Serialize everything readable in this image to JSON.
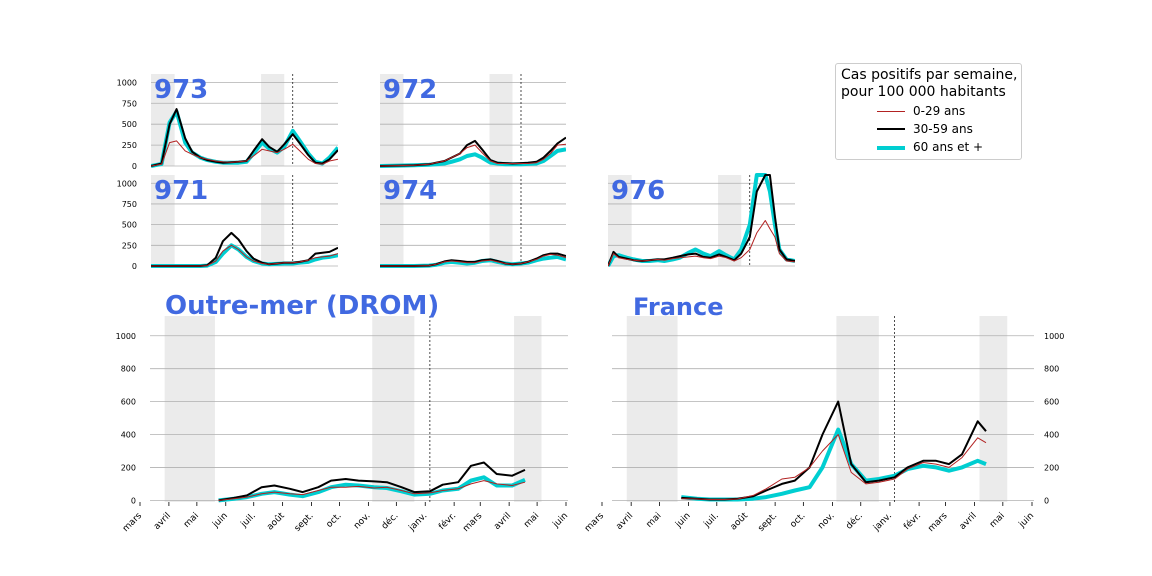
{
  "legend": {
    "title_line1": "Cas positifs par semaine,",
    "title_line2": "pour 100 000 habitants",
    "items": [
      {
        "label": "0-29 ans",
        "color": "#b22222"
      },
      {
        "label": "30-59 ans",
        "color": "#000000"
      },
      {
        "label": "60 ans et +",
        "color": "#00ced1"
      }
    ]
  },
  "chart_data": [
    {
      "type": "line",
      "title": "973",
      "x_start": "2020-03-25",
      "x_end": "2021-04-01",
      "x": [
        "2020-03-25",
        "2020-04-15",
        "2020-05-01",
        "2020-05-15",
        "2020-06-01",
        "2020-06-15",
        "2020-07-01",
        "2020-07-15",
        "2020-08-01",
        "2020-08-15",
        "2020-09-01",
        "2020-09-15",
        "2020-10-01",
        "2020-10-15",
        "2020-11-01",
        "2020-11-15",
        "2020-12-01",
        "2020-12-15",
        "2021-01-01",
        "2021-01-15",
        "2021-02-01",
        "2021-02-15",
        "2021-03-01",
        "2021-03-15",
        "2021-04-01"
      ],
      "ylim": [
        0,
        1100
      ],
      "yticks": [
        0,
        250,
        500,
        750,
        1000
      ],
      "series": [
        {
          "values": [
            0,
            20,
            280,
            300,
            180,
            140,
            100,
            80,
            60,
            50,
            45,
            50,
            60,
            120,
            200,
            180,
            160,
            200,
            260,
            180,
            80,
            30,
            20,
            60,
            80
          ]
        },
        {
          "values": [
            0,
            30,
            500,
            680,
            330,
            170,
            100,
            70,
            50,
            40,
            45,
            50,
            60,
            180,
            320,
            230,
            170,
            260,
            380,
            270,
            130,
            40,
            30,
            80,
            190
          ]
        },
        {
          "values": [
            0,
            25,
            520,
            650,
            280,
            160,
            100,
            70,
            50,
            40,
            40,
            40,
            50,
            150,
            280,
            210,
            160,
            230,
            420,
            300,
            150,
            50,
            30,
            100,
            220
          ]
        }
      ]
    },
    {
      "type": "line",
      "title": "972",
      "x_start": "2020-03-25",
      "x_end": "2021-04-01",
      "x": [
        "2020-03-25",
        "2020-05-01",
        "2020-06-01",
        "2020-07-01",
        "2020-07-15",
        "2020-08-01",
        "2020-08-15",
        "2020-09-01",
        "2020-09-15",
        "2020-10-01",
        "2020-10-15",
        "2020-11-01",
        "2020-11-15",
        "2020-12-01",
        "2020-12-15",
        "2021-01-01",
        "2021-01-15",
        "2021-02-01",
        "2021-02-15",
        "2021-03-01",
        "2021-03-15",
        "2021-04-01"
      ],
      "ylim": [
        0,
        1100
      ],
      "yticks": [
        0,
        250,
        500,
        750,
        1000
      ],
      "series": [
        {
          "values": [
            0,
            5,
            10,
            20,
            40,
            60,
            100,
            150,
            220,
            250,
            160,
            60,
            30,
            30,
            30,
            30,
            30,
            40,
            80,
            150,
            250,
            260
          ]
        },
        {
          "values": [
            0,
            5,
            10,
            20,
            40,
            60,
            100,
            150,
            250,
            300,
            200,
            70,
            40,
            35,
            30,
            35,
            40,
            50,
            100,
            180,
            270,
            340
          ]
        },
        {
          "values": [
            0,
            5,
            10,
            15,
            20,
            30,
            50,
            80,
            120,
            140,
            100,
            40,
            30,
            20,
            20,
            20,
            25,
            30,
            60,
            120,
            180,
            200
          ]
        }
      ]
    },
    {
      "type": "line",
      "title": "971",
      "x_start": "2020-03-25",
      "x_end": "2021-04-01",
      "x": [
        "2020-03-25",
        "2020-05-01",
        "2020-06-01",
        "2020-07-01",
        "2020-07-15",
        "2020-08-01",
        "2020-08-15",
        "2020-09-01",
        "2020-09-15",
        "2020-10-01",
        "2020-10-15",
        "2020-11-01",
        "2020-11-15",
        "2020-12-01",
        "2020-12-15",
        "2021-01-01",
        "2021-01-15",
        "2021-02-01",
        "2021-02-15",
        "2021-03-01",
        "2021-03-15",
        "2021-04-01"
      ],
      "ylim": [
        0,
        1100
      ],
      "yticks": [
        0,
        250,
        500,
        750,
        1000
      ],
      "series": [
        {
          "values": [
            0,
            0,
            0,
            0,
            5,
            60,
            180,
            250,
            200,
            110,
            60,
            30,
            20,
            30,
            40,
            40,
            50,
            70,
            100,
            110,
            120,
            150
          ]
        },
        {
          "values": [
            0,
            0,
            0,
            0,
            10,
            100,
            300,
            400,
            320,
            180,
            90,
            40,
            20,
            30,
            40,
            40,
            50,
            70,
            150,
            160,
            170,
            220
          ]
        },
        {
          "values": [
            0,
            0,
            0,
            0,
            5,
            50,
            150,
            250,
            200,
            110,
            60,
            30,
            20,
            25,
            30,
            30,
            40,
            50,
            80,
            100,
            110,
            130
          ]
        }
      ]
    },
    {
      "type": "line",
      "title": "974",
      "x_start": "2020-03-25",
      "x_end": "2021-04-01",
      "x": [
        "2020-03-25",
        "2020-05-01",
        "2020-06-01",
        "2020-07-01",
        "2020-07-15",
        "2020-08-01",
        "2020-08-15",
        "2020-09-01",
        "2020-09-15",
        "2020-10-01",
        "2020-10-15",
        "2020-11-01",
        "2020-11-15",
        "2020-12-01",
        "2020-12-15",
        "2021-01-01",
        "2021-01-15",
        "2021-02-01",
        "2021-02-15",
        "2021-03-01",
        "2021-03-15",
        "2021-04-01"
      ],
      "ylim": [
        0,
        1100
      ],
      "yticks": [
        0,
        250,
        500,
        750,
        1000
      ],
      "series": [
        {
          "values": [
            0,
            0,
            0,
            5,
            20,
            50,
            60,
            50,
            40,
            40,
            60,
            70,
            50,
            30,
            20,
            30,
            50,
            80,
            120,
            140,
            130,
            100
          ]
        },
        {
          "values": [
            0,
            0,
            0,
            5,
            20,
            55,
            70,
            60,
            50,
            50,
            70,
            80,
            60,
            30,
            20,
            30,
            50,
            90,
            130,
            150,
            150,
            120
          ]
        },
        {
          "values": [
            0,
            0,
            0,
            5,
            15,
            40,
            50,
            40,
            30,
            40,
            60,
            70,
            50,
            30,
            20,
            30,
            40,
            70,
            90,
            100,
            110,
            80
          ]
        }
      ]
    },
    {
      "type": "line",
      "title": "976",
      "x_start": "2020-03-25",
      "x_end": "2021-04-01",
      "x": [
        "2020-03-25",
        "2020-04-05",
        "2020-04-15",
        "2020-05-01",
        "2020-05-15",
        "2020-06-01",
        "2020-06-15",
        "2020-07-01",
        "2020-07-15",
        "2020-08-01",
        "2020-08-15",
        "2020-09-01",
        "2020-09-15",
        "2020-10-01",
        "2020-10-15",
        "2020-11-01",
        "2020-11-15",
        "2020-12-01",
        "2020-12-15",
        "2021-01-01",
        "2021-01-15",
        "2021-02-01",
        "2021-02-10",
        "2021-02-20",
        "2021-03-01",
        "2021-03-15",
        "2021-04-01"
      ],
      "ylim": [
        0,
        1100
      ],
      "yticks": [
        0,
        250,
        500,
        750,
        1000
      ],
      "series": [
        {
          "values": [
            0,
            150,
            100,
            80,
            70,
            60,
            70,
            80,
            70,
            90,
            100,
            110,
            120,
            100,
            90,
            120,
            100,
            60,
            100,
            200,
            400,
            550,
            450,
            350,
            150,
            60,
            50
          ]
        },
        {
          "values": [
            0,
            170,
            110,
            90,
            70,
            60,
            70,
            80,
            80,
            100,
            120,
            140,
            150,
            110,
            100,
            140,
            110,
            70,
            150,
            350,
            900,
            1500,
            1100,
            600,
            200,
            80,
            60
          ]
        },
        {
          "values": [
            0,
            120,
            130,
            100,
            80,
            60,
            60,
            70,
            60,
            80,
            100,
            160,
            200,
            150,
            120,
            180,
            130,
            80,
            200,
            500,
            1200,
            1400,
            900,
            500,
            200,
            80,
            60
          ]
        }
      ]
    },
    {
      "type": "line",
      "title": "Outre-mer (DROM)",
      "x_start": "2020-03-01",
      "x_end": "2021-06-01",
      "x": [
        "2020-05-15",
        "2020-06-01",
        "2020-06-15",
        "2020-07-01",
        "2020-07-15",
        "2020-08-01",
        "2020-08-15",
        "2020-09-01",
        "2020-09-15",
        "2020-10-01",
        "2020-10-15",
        "2020-11-01",
        "2020-11-15",
        "2020-12-01",
        "2020-12-15",
        "2021-01-01",
        "2021-01-15",
        "2021-02-01",
        "2021-02-15",
        "2021-03-01",
        "2021-03-15",
        "2021-04-01",
        "2021-04-15"
      ],
      "ylim": [
        -10,
        1120
      ],
      "yticks": [
        0,
        200,
        400,
        600,
        800,
        1000
      ],
      "series": [
        {
          "values": [
            0,
            10,
            20,
            40,
            50,
            40,
            35,
            60,
            80,
            80,
            85,
            75,
            80,
            60,
            40,
            45,
            60,
            70,
            100,
            120,
            100,
            90,
            110
          ]
        },
        {
          "values": [
            0,
            15,
            30,
            80,
            90,
            70,
            50,
            80,
            120,
            130,
            120,
            115,
            110,
            80,
            50,
            55,
            95,
            110,
            210,
            230,
            160,
            150,
            185
          ]
        },
        {
          "values": [
            0,
            10,
            20,
            40,
            50,
            35,
            25,
            50,
            80,
            95,
            90,
            80,
            75,
            55,
            35,
            40,
            60,
            70,
            120,
            140,
            90,
            90,
            125
          ]
        }
      ]
    },
    {
      "type": "line",
      "title": "France",
      "x_start": "2020-03-01",
      "x_end": "2021-06-01",
      "x": [
        "2020-05-15",
        "2020-06-01",
        "2020-06-15",
        "2020-07-01",
        "2020-07-15",
        "2020-08-01",
        "2020-08-15",
        "2020-09-01",
        "2020-09-15",
        "2020-10-01",
        "2020-10-15",
        "2020-11-01",
        "2020-11-15",
        "2020-12-01",
        "2020-12-15",
        "2021-01-01",
        "2021-01-15",
        "2021-02-01",
        "2021-02-15",
        "2021-03-01",
        "2021-03-15",
        "2021-04-01",
        "2021-04-10"
      ],
      "ylim": [
        -10,
        1120
      ],
      "yticks": [
        0,
        200,
        400,
        600,
        800,
        1000
      ],
      "series": [
        {
          "values": [
            10,
            8,
            5,
            5,
            8,
            30,
            70,
            130,
            140,
            200,
            300,
            400,
            170,
            100,
            110,
            130,
            190,
            230,
            220,
            200,
            260,
            380,
            350
          ]
        },
        {
          "values": [
            15,
            10,
            5,
            5,
            10,
            25,
            60,
            100,
            120,
            200,
            400,
            600,
            220,
            110,
            120,
            140,
            200,
            240,
            240,
            220,
            280,
            480,
            420
          ]
        },
        {
          "values": [
            20,
            10,
            5,
            5,
            5,
            10,
            20,
            40,
            60,
            80,
            200,
            430,
            220,
            120,
            130,
            150,
            190,
            210,
            200,
            180,
            200,
            240,
            220
          ]
        }
      ]
    }
  ],
  "date_axis": {
    "tick_dates": [
      "2020-03-01",
      "2020-04-01",
      "2020-05-01",
      "2020-06-01",
      "2020-07-01",
      "2020-08-01",
      "2020-09-01",
      "2020-10-01",
      "2020-11-01",
      "2020-12-01",
      "2021-01-01",
      "2021-02-01",
      "2021-03-01",
      "2021-04-01",
      "2021-05-01",
      "2021-06-01"
    ],
    "tick_labels": [
      "mars",
      "avril",
      "mai",
      "juin",
      "juil.",
      "août",
      "sept.",
      "oct.",
      "nov.",
      "déc.",
      "janv.",
      "févr.",
      "mars",
      "avril",
      "mai",
      "juin"
    ]
  },
  "shaded_periods": [
    {
      "start": "2020-03-17",
      "end": "2020-05-11"
    },
    {
      "start": "2020-10-30",
      "end": "2020-12-15"
    },
    {
      "start": "2021-04-03",
      "end": "2021-05-03"
    }
  ],
  "marker_date": "2021-01-01",
  "small_yticks": [
    "0",
    "250",
    "500",
    "750",
    "1000"
  ],
  "big_yticks": [
    "0",
    "200",
    "400",
    "600",
    "800",
    "1000"
  ]
}
